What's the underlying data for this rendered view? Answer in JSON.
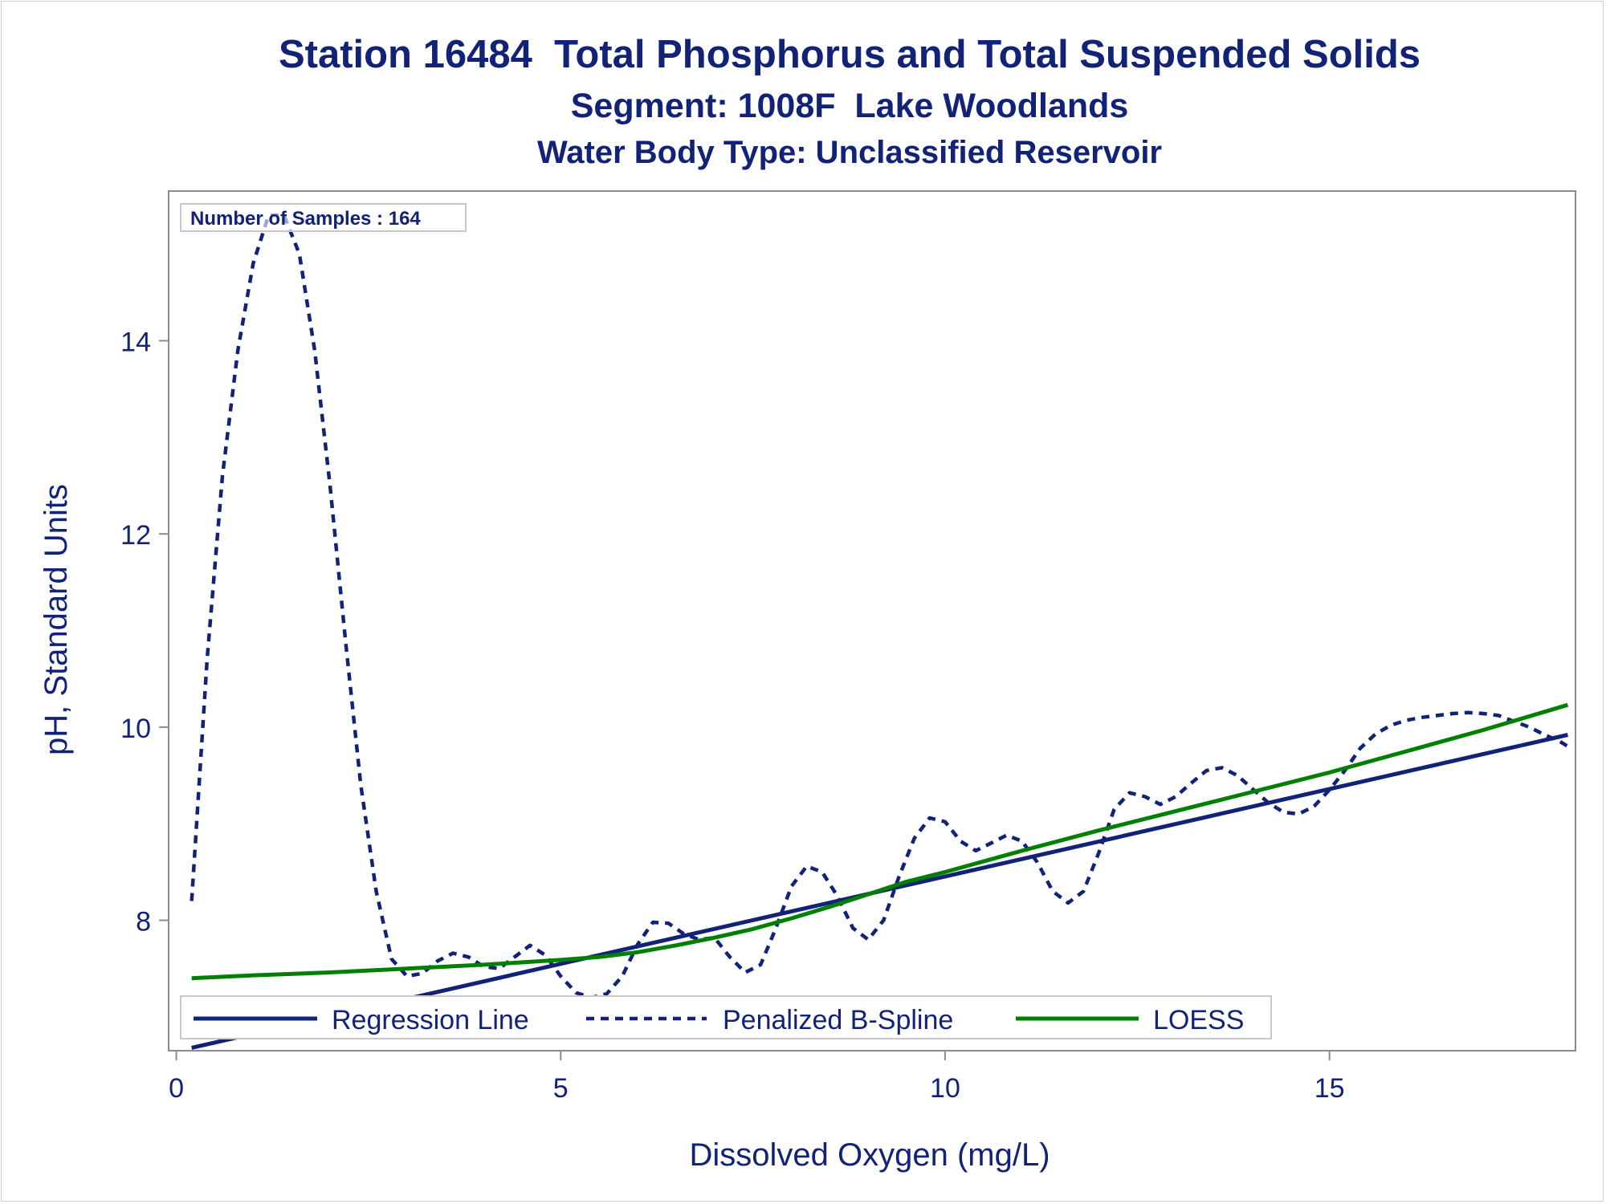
{
  "chart_data": {
    "type": "line",
    "title": "Station 16484  Total Phosphorus and Total Suspended Solids",
    "subtitle": "Segment: 1008F  Lake Woodlands",
    "subtitle2": "Water Body Type: Unclassified Reservoir",
    "xlabel": "Dissolved Oxygen (mg/L)",
    "ylabel": "pH, Standard Units",
    "xlim": [
      -0.1,
      18.2
    ],
    "ylim": [
      6.65,
      15.55
    ],
    "xticks": [
      0,
      5,
      10,
      15
    ],
    "yticks": [
      8,
      10,
      12,
      14
    ],
    "grid": false,
    "inset_label": "Number of Samples : 164",
    "legend_position": "bottom-inside",
    "series": [
      {
        "name": "Regression Line",
        "style": "solid",
        "color": "#112277",
        "x": [
          0.2,
          18.1
        ],
        "y": [
          6.68,
          9.92
        ]
      },
      {
        "name": "Penalized B-Spline",
        "style": "dashed",
        "color": "#112277",
        "x": [
          0.2,
          0.4,
          0.6,
          0.8,
          1.0,
          1.2,
          1.4,
          1.6,
          1.8,
          2.0,
          2.2,
          2.4,
          2.6,
          2.8,
          3.0,
          3.2,
          3.4,
          3.6,
          3.8,
          4.0,
          4.2,
          4.4,
          4.6,
          4.8,
          5.0,
          5.2,
          5.4,
          5.6,
          5.8,
          6.0,
          6.2,
          6.4,
          6.6,
          6.8,
          7.0,
          7.2,
          7.4,
          7.6,
          7.8,
          8.0,
          8.2,
          8.4,
          8.6,
          8.8,
          9.0,
          9.2,
          9.4,
          9.6,
          9.8,
          10.0,
          10.2,
          10.4,
          10.6,
          10.8,
          11.0,
          11.2,
          11.4,
          11.6,
          11.8,
          12.0,
          12.2,
          12.4,
          12.6,
          12.8,
          13.0,
          13.2,
          13.4,
          13.6,
          13.8,
          14.0,
          14.2,
          14.4,
          14.6,
          14.8,
          15.0,
          15.2,
          15.4,
          15.6,
          15.8,
          16.0,
          16.2,
          16.4,
          16.6,
          16.8,
          17.0,
          17.2,
          17.4,
          17.6,
          17.8,
          18.0,
          18.1
        ],
        "y": [
          8.2,
          10.7,
          12.6,
          13.9,
          14.8,
          15.3,
          15.3,
          14.9,
          13.9,
          12.5,
          10.9,
          9.4,
          8.3,
          7.6,
          7.42,
          7.45,
          7.58,
          7.66,
          7.62,
          7.52,
          7.5,
          7.62,
          7.74,
          7.64,
          7.42,
          7.25,
          7.2,
          7.24,
          7.42,
          7.75,
          7.98,
          7.97,
          7.86,
          7.8,
          7.82,
          7.62,
          7.46,
          7.54,
          7.92,
          8.35,
          8.56,
          8.5,
          8.25,
          7.92,
          7.8,
          8.0,
          8.45,
          8.85,
          9.06,
          9.02,
          8.82,
          8.72,
          8.8,
          8.88,
          8.82,
          8.6,
          8.3,
          8.18,
          8.3,
          8.7,
          9.15,
          9.32,
          9.28,
          9.2,
          9.28,
          9.42,
          9.55,
          9.58,
          9.5,
          9.36,
          9.22,
          9.12,
          9.1,
          9.18,
          9.35,
          9.55,
          9.78,
          9.93,
          10.02,
          10.07,
          10.1,
          10.12,
          10.14,
          10.15,
          10.14,
          10.12,
          10.06,
          10.0,
          9.92,
          9.85,
          9.8
        ]
      },
      {
        "name": "LOESS",
        "style": "solid",
        "color": "#008000",
        "x": [
          0.2,
          1.0,
          2.0,
          3.0,
          4.0,
          5.0,
          5.5,
          6.0,
          6.5,
          7.0,
          7.5,
          8.0,
          8.5,
          9.0,
          9.5,
          10.0,
          11.0,
          12.0,
          13.0,
          14.0,
          15.0,
          16.0,
          17.0,
          18.1
        ],
        "y": [
          7.4,
          7.43,
          7.46,
          7.5,
          7.54,
          7.59,
          7.62,
          7.67,
          7.74,
          7.82,
          7.91,
          8.02,
          8.14,
          8.27,
          8.4,
          8.5,
          8.72,
          8.93,
          9.13,
          9.33,
          9.53,
          9.75,
          9.97,
          10.23
        ]
      }
    ]
  }
}
